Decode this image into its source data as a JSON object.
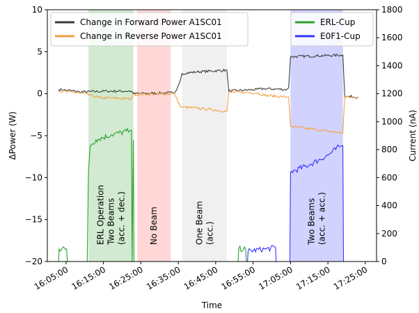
{
  "chart_data": {
    "type": "line",
    "title": "",
    "xlabel": "Time",
    "ylabel_left": "ΔPower (W)",
    "ylabel_right": "Current (nA)",
    "x_domain": [
      "16:00:00",
      "17:28:00"
    ],
    "xticks": [
      "16:05:00",
      "16:15:00",
      "16:25:00",
      "16:35:00",
      "16:45:00",
      "16:55:00",
      "17:05:00",
      "17:15:00",
      "17:25:00"
    ],
    "ylim_left": [
      -20,
      10
    ],
    "yticks_left": [
      "−20",
      "−15",
      "−10",
      "−5",
      "0",
      "5",
      "10"
    ],
    "ylim_right": [
      0,
      1800
    ],
    "yticks_right": [
      "0",
      "200",
      "400",
      "600",
      "800",
      "1000",
      "1200",
      "1400",
      "1600",
      "1800"
    ],
    "grid": false,
    "legend_left": {
      "placement": "top-left",
      "entries": [
        {
          "label": "Change in Forward Power A1SC01",
          "color": "#3b3b3b"
        },
        {
          "label": "Change in Reverse Power A1SC01",
          "color": "#f5a040"
        }
      ]
    },
    "legend_right": {
      "placement": "top-right",
      "entries": [
        {
          "label": "ERL-Cup",
          "color": "#2ca02c"
        },
        {
          "label": "E0F1-Cup",
          "color": "#3232ff"
        }
      ]
    },
    "regions": [
      {
        "start": "16:11:00",
        "end": "16:23:00",
        "color": "#2ca02c",
        "lines": [
          "ERL Operation",
          "Two Beams",
          "(acc. + dec.)"
        ]
      },
      {
        "start": "16:24:00",
        "end": "16:33:00",
        "color": "#ff4a4a",
        "lines": [
          "No Beam"
        ]
      },
      {
        "start": "16:36:00",
        "end": "16:48:00",
        "color": "#bbbbbb",
        "lines": [
          "One Beam",
          "(acc.)"
        ]
      },
      {
        "start": "17:05:00",
        "end": "17:19:00",
        "color": "#3232ff",
        "lines": [
          "Two Beams",
          "(acc. + acc.)"
        ]
      }
    ],
    "series": [
      {
        "name": "Change in Forward Power A1SC01",
        "axis": "left",
        "color": "#3b3b3b",
        "points": [
          [
            "16:03:00",
            0.5
          ],
          [
            "16:05:30",
            0.4
          ],
          [
            "16:09:00",
            0.2
          ],
          [
            "16:16:00",
            0.3
          ],
          [
            "16:22:30",
            0.3
          ],
          [
            "16:23:00",
            0.0
          ],
          [
            "16:34:00",
            0.1
          ],
          [
            "16:34:30",
            0.4
          ],
          [
            "16:35:30",
            1.5
          ],
          [
            "16:36:00",
            2.4
          ],
          [
            "16:40:00",
            2.6
          ],
          [
            "16:48:00",
            2.8
          ],
          [
            "16:48:30",
            0.3
          ],
          [
            "16:56:00",
            0.5
          ],
          [
            "16:58:00",
            0.6
          ],
          [
            "17:04:00",
            0.5
          ],
          [
            "17:04:30",
            0.7
          ],
          [
            "17:05:00",
            4.4
          ],
          [
            "17:12:00",
            4.5
          ],
          [
            "17:19:00",
            4.6
          ],
          [
            "17:19:30",
            -0.3
          ],
          [
            "17:23:00",
            -0.4
          ]
        ]
      },
      {
        "name": "Change in Reverse Power A1SC01",
        "axis": "left",
        "color": "#f5a040",
        "points": [
          [
            "16:03:00",
            0.3
          ],
          [
            "16:05:30",
            0.2
          ],
          [
            "16:09:00",
            0.1
          ],
          [
            "16:14:00",
            -0.5
          ],
          [
            "16:22:30",
            -0.6
          ],
          [
            "16:23:00",
            -0.1
          ],
          [
            "16:34:00",
            0.0
          ],
          [
            "16:35:30",
            -1.5
          ],
          [
            "16:36:00",
            -1.6
          ],
          [
            "16:42:00",
            -1.8
          ],
          [
            "16:48:00",
            -2.1
          ],
          [
            "16:48:30",
            0.2
          ],
          [
            "16:56:00",
            0.1
          ],
          [
            "16:58:00",
            -0.2
          ],
          [
            "17:04:00",
            -0.4
          ],
          [
            "17:04:30",
            -0.4
          ],
          [
            "17:05:00",
            -3.9
          ],
          [
            "17:12:00",
            -4.3
          ],
          [
            "17:19:00",
            -4.7
          ],
          [
            "17:19:30",
            -0.4
          ],
          [
            "17:23:00",
            -0.5
          ]
        ]
      },
      {
        "name": "ERL-Cup",
        "axis": "right",
        "color": "#2ca02c",
        "points": [
          [
            "16:03:00",
            0
          ],
          [
            "16:03:10",
            90
          ],
          [
            "16:05:10",
            90
          ],
          [
            "16:05:20",
            0
          ],
          [
            "16:10:40",
            0
          ],
          [
            "16:11:00",
            650
          ],
          [
            "16:11:30",
            830
          ],
          [
            "16:13:00",
            870
          ],
          [
            "16:17:00",
            905
          ],
          [
            "16:22:00",
            935
          ],
          [
            "16:22:30",
            940
          ],
          [
            "16:22:40",
            0
          ],
          [
            "16:23:00",
            870
          ],
          [
            "16:23:10",
            0
          ],
          [
            "16:51:00",
            0
          ],
          [
            "16:51:10",
            90
          ],
          [
            "16:53:00",
            90
          ],
          [
            "16:53:10",
            0
          ]
        ]
      },
      {
        "name": "E0F1-Cup",
        "axis": "right",
        "color": "#3232ff",
        "points": [
          [
            "16:53:30",
            0
          ],
          [
            "16:53:40",
            75
          ],
          [
            "16:58:30",
            90
          ],
          [
            "17:01:00",
            100
          ],
          [
            "17:01:10",
            0
          ],
          [
            "17:04:50",
            0
          ],
          [
            "17:05:00",
            640
          ],
          [
            "17:10:00",
            690
          ],
          [
            "17:15:00",
            760
          ],
          [
            "17:18:00",
            820
          ],
          [
            "17:19:00",
            830
          ],
          [
            "17:19:10",
            0
          ]
        ]
      }
    ]
  }
}
